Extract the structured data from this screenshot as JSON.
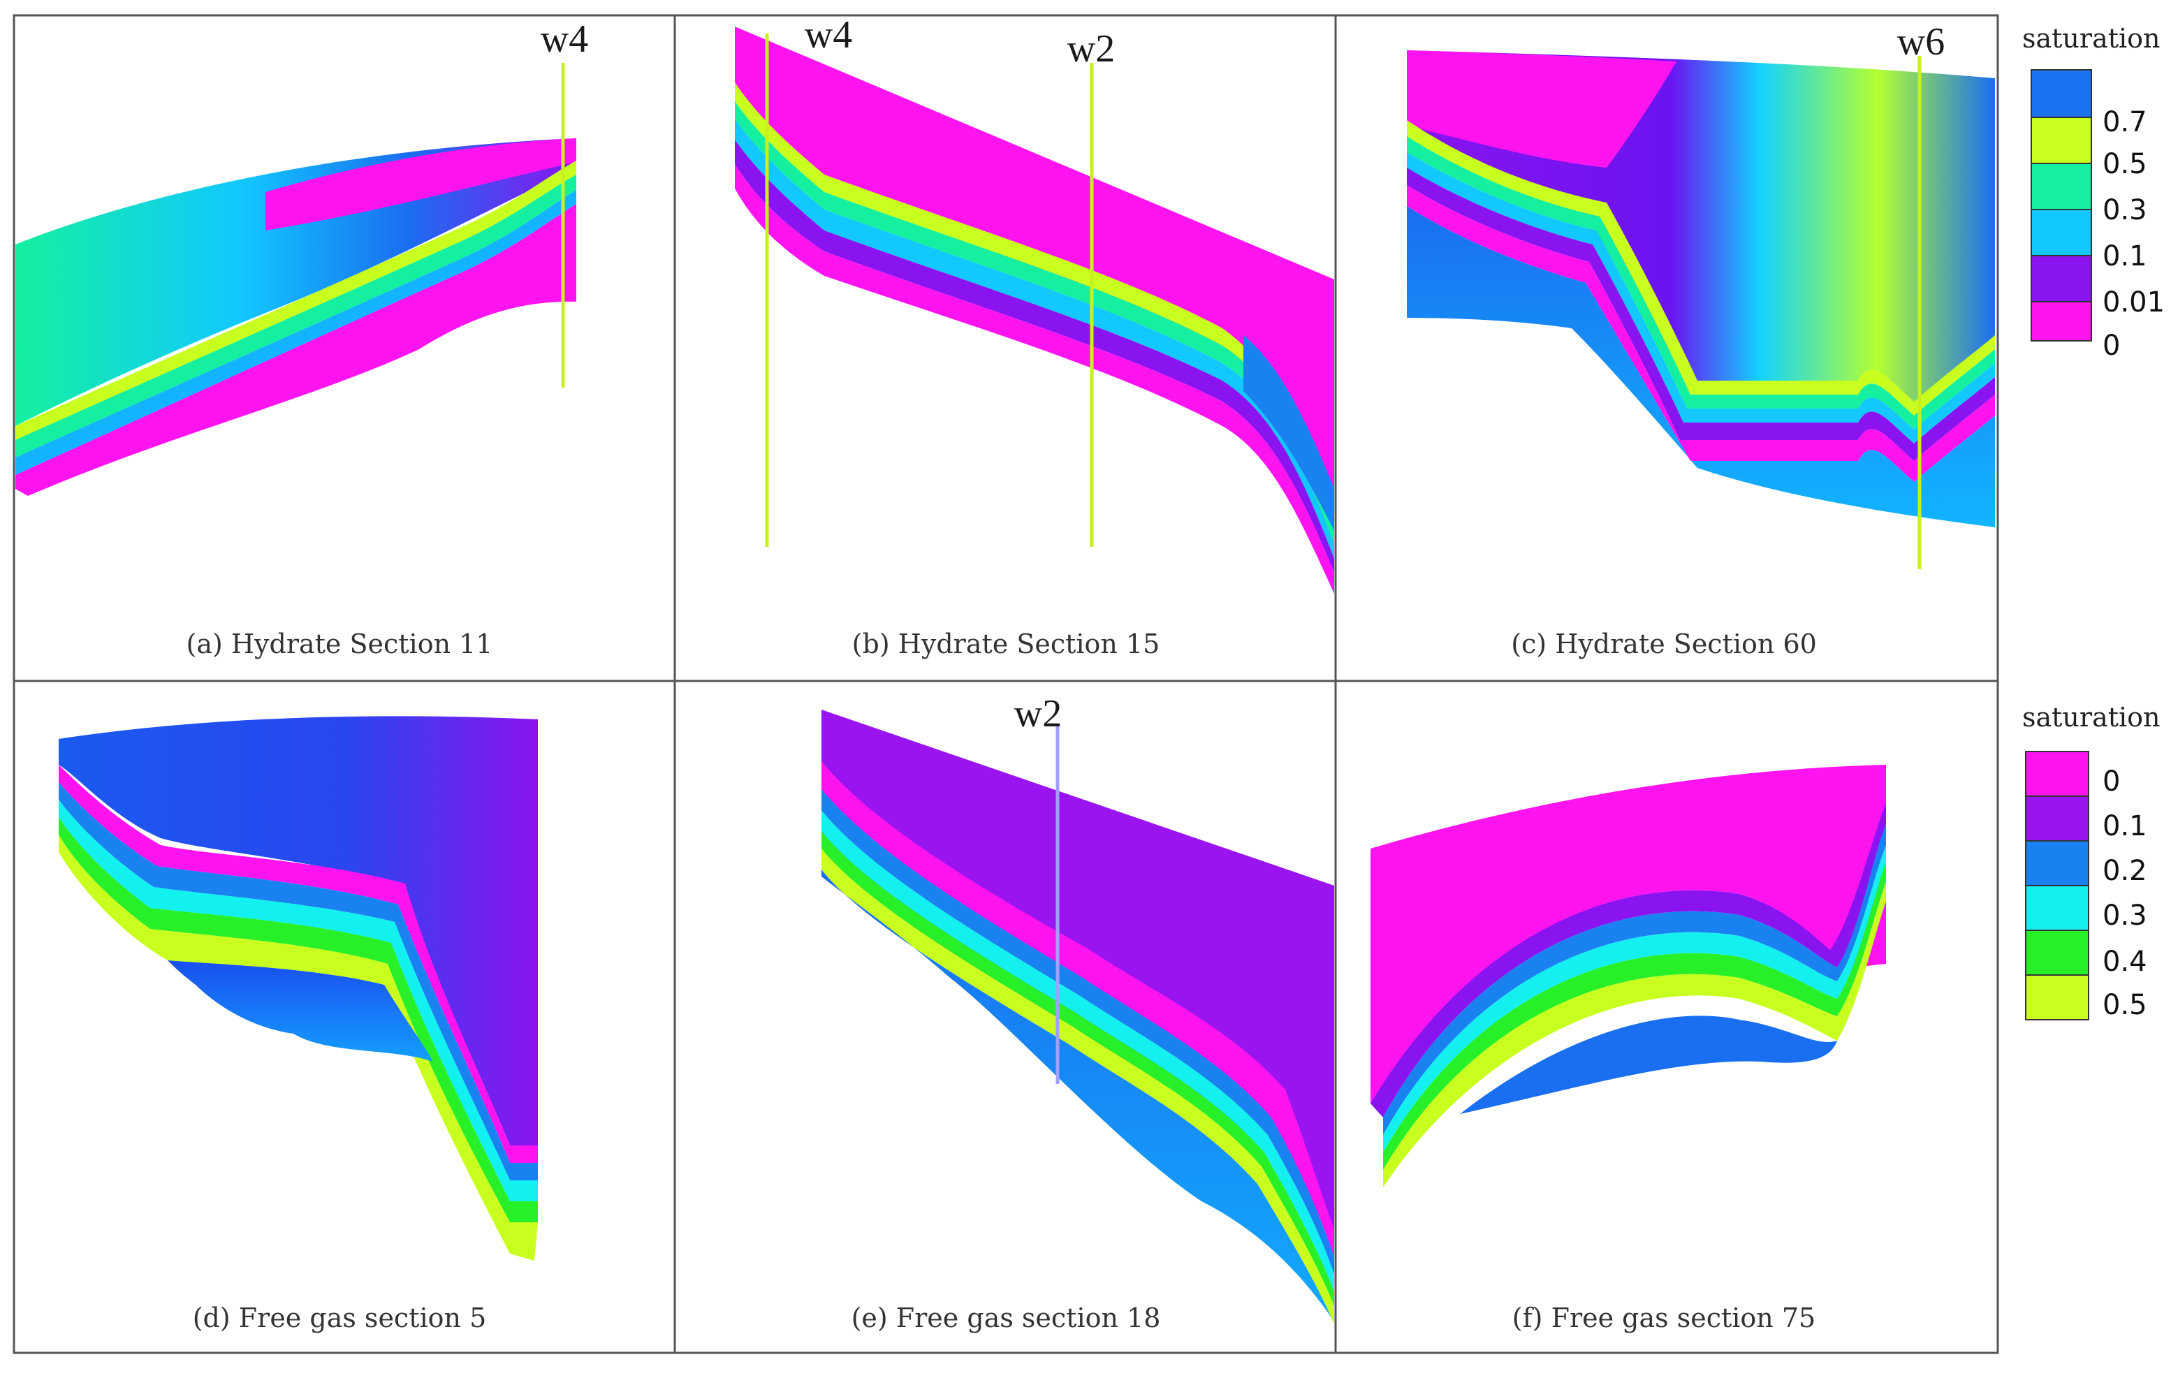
{
  "panels": [
    {
      "id": "a",
      "caption": "(a) Hydrate Section 11",
      "wells": [
        "w4"
      ]
    },
    {
      "id": "b",
      "caption": "(b) Hydrate Section 15",
      "wells": [
        "w4",
        "w2"
      ]
    },
    {
      "id": "c",
      "caption": "(c) Hydrate Section 60",
      "wells": [
        "w6"
      ]
    },
    {
      "id": "d",
      "caption": "(d) Free gas section 5",
      "wells": []
    },
    {
      "id": "e",
      "caption": "(e) Free gas section 18",
      "wells": [
        "w2"
      ]
    },
    {
      "id": "f",
      "caption": "(f) Free gas section 75",
      "wells": []
    }
  ],
  "legend_hydrate": {
    "title": "saturation",
    "labels": [
      "0.7",
      "0.5",
      "0.3",
      "0.1",
      "0.01",
      "0"
    ],
    "colors": [
      "#1a73f0",
      "#c8ff1e",
      "#14f0a0",
      "#12c8ff",
      "#8a14f0",
      "#ff14f0"
    ]
  },
  "legend_gas": {
    "title": "saturation",
    "labels": [
      "0",
      "0.1",
      "0.2",
      "0.3",
      "0.4",
      "0.5"
    ],
    "colors": [
      "#ff14f0",
      "#9a14f0",
      "#1a82f0",
      "#14f0f0",
      "#28f028",
      "#c8ff1e"
    ]
  },
  "colors": {
    "magenta": "#ff14f0",
    "purple": "#8a14f0",
    "blue": "#1a6ef0",
    "cyan": "#12d2ff",
    "green": "#14f0a0",
    "lime": "#c8ff1e",
    "well_line_yellow": "#c8f01e",
    "well_line_blue": "#a0a0ff"
  }
}
